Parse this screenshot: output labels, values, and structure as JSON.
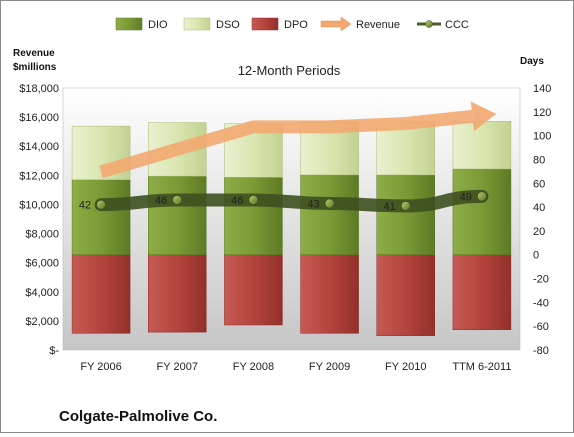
{
  "company": "Colgate-Palmolive Co.",
  "chart_data": {
    "type": "bar",
    "subtype": "stacked-bar-with-lines",
    "title": "12-Month Periods",
    "left_axis_label": [
      "Revenue",
      "$millions"
    ],
    "right_axis_label": "Days",
    "categories": [
      "FY 2006",
      "FY 2007",
      "FY 2008",
      "FY 2009",
      "FY 2010",
      "TTM 6-2011"
    ],
    "left_ylim": [
      0,
      18000
    ],
    "left_ticks": [
      "$-",
      "$2,000",
      "$4,000",
      "$6,000",
      "$8,000",
      "$10,000",
      "$12,000",
      "$14,000",
      "$16,000",
      "$18,000"
    ],
    "right_ylim": [
      -80,
      140
    ],
    "right_ticks": [
      "-80",
      "-60",
      "-40",
      "-20",
      "0",
      "20",
      "40",
      "60",
      "80",
      "100",
      "120",
      "140"
    ],
    "legend": [
      "DIO",
      "DSO",
      "DPO",
      "Revenue",
      "CCC"
    ],
    "legend_position": "top",
    "series": [
      {
        "name": "DIO",
        "axis": "right",
        "kind": "bar-positive",
        "values": [
          63,
          66,
          65,
          67,
          67,
          72
        ],
        "color": "#7a9a35"
      },
      {
        "name": "DSO",
        "axis": "right",
        "kind": "bar-stacked-on-DIO",
        "values": [
          45,
          45,
          45,
          45,
          45,
          40
        ],
        "color": "#d8e4b2"
      },
      {
        "name": "DPO",
        "axis": "right",
        "kind": "bar-negative",
        "values": [
          -66,
          -65,
          -59,
          -66,
          -68,
          -63
        ],
        "color": "#b5423d"
      },
      {
        "name": "Revenue",
        "axis": "left",
        "kind": "arrow-line",
        "values": [
          12238,
          13790,
          15330,
          15327,
          15564,
          16120
        ],
        "color": "#f2a76e"
      },
      {
        "name": "CCC",
        "axis": "right",
        "kind": "line",
        "values": [
          42,
          46,
          46,
          43,
          41,
          49
        ],
        "color": "#4a5e25"
      }
    ],
    "data_labels": [
      "42",
      "46",
      "46",
      "43",
      "41",
      "49"
    ],
    "grid": false
  }
}
